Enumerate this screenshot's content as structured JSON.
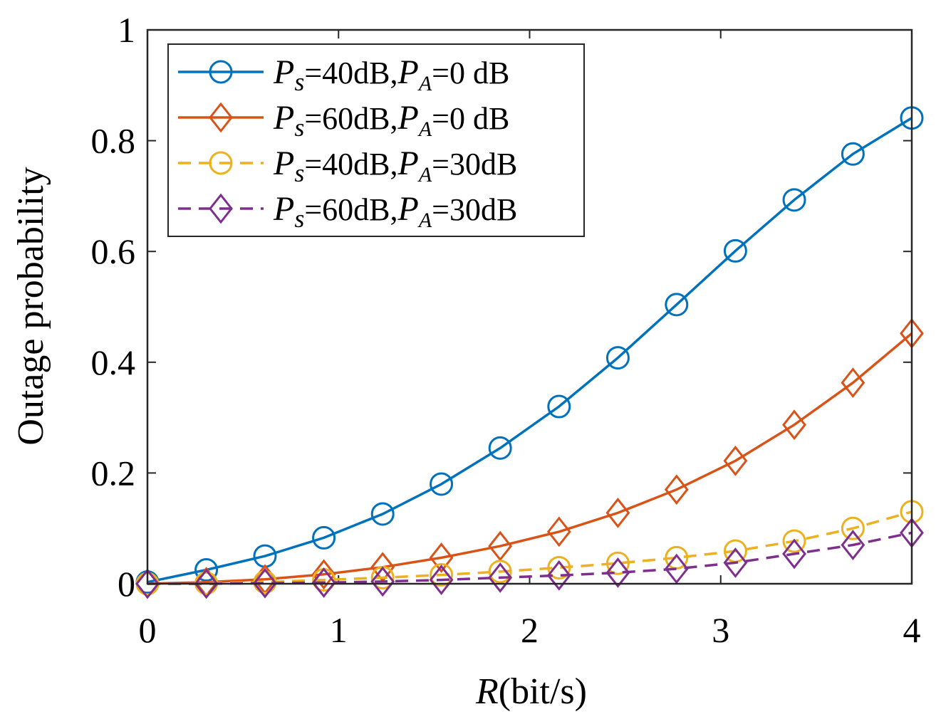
{
  "chart_data": {
    "type": "line",
    "title": "",
    "xlabel_italic": "R",
    "xlabel_rest": "(bit/s)",
    "ylabel": "Outage probability",
    "xlim": [
      0,
      4
    ],
    "ylim": [
      0,
      1
    ],
    "grid": false,
    "legend_position": "top-left",
    "xticks": [
      0,
      1,
      2,
      3,
      4
    ],
    "xtick_labels": [
      "0",
      "1",
      "2",
      "3",
      "4"
    ],
    "yticks": [
      0,
      0.2,
      0.4,
      0.6,
      0.8,
      1
    ],
    "ytick_labels": [
      "0",
      "0.2",
      "0.4",
      "0.6",
      "0.8",
      "1"
    ],
    "x": [
      0,
      0.308,
      0.615,
      0.923,
      1.231,
      1.538,
      1.846,
      2.154,
      2.462,
      2.769,
      3.077,
      3.385,
      3.692,
      4.0
    ],
    "series": [
      {
        "name": "Ps=40dB,PA=0 dB",
        "legend": {
          "p1": "P",
          "s1": "s",
          "mid": "=40dB,",
          "p2": "P",
          "s2": "A",
          "tail": "=0  dB"
        },
        "color": "#0072BD",
        "dash": "solid",
        "marker": "circle",
        "values": [
          0.003,
          0.025,
          0.05,
          0.083,
          0.126,
          0.18,
          0.245,
          0.32,
          0.408,
          0.504,
          0.601,
          0.693,
          0.776,
          0.841
        ]
      },
      {
        "name": "Ps=60dB,PA=0 dB",
        "legend": {
          "p1": "P",
          "s1": "s",
          "mid": "=60dB,",
          "p2": "P",
          "s2": "A",
          "tail": "=0  dB"
        },
        "color": "#D95319",
        "dash": "solid",
        "marker": "diamond",
        "values": [
          0.0,
          0.003,
          0.008,
          0.017,
          0.03,
          0.047,
          0.068,
          0.094,
          0.128,
          0.17,
          0.222,
          0.287,
          0.363,
          0.452
        ]
      },
      {
        "name": "Ps=40dB,PA=30dB",
        "legend": {
          "p1": "P",
          "s1": "s",
          "mid": "=40dB,",
          "p2": "P",
          "s2": "A",
          "tail": "=30dB"
        },
        "color": "#EDB120",
        "dash": "dashed",
        "marker": "circle",
        "values": [
          0.0,
          0.001,
          0.003,
          0.007,
          0.011,
          0.016,
          0.022,
          0.029,
          0.037,
          0.047,
          0.059,
          0.077,
          0.1,
          0.13
        ]
      },
      {
        "name": "Ps=60dB,PA=30dB",
        "legend": {
          "p1": "P",
          "s1": "s",
          "mid": "=60dB,",
          "p2": "P",
          "s2": "A",
          "tail": "=30dB"
        },
        "color": "#7E2F8E",
        "dash": "dashed",
        "marker": "diamond",
        "values": [
          0.0,
          0.0,
          0.001,
          0.002,
          0.004,
          0.007,
          0.011,
          0.015,
          0.02,
          0.027,
          0.038,
          0.054,
          0.07,
          0.092
        ]
      }
    ]
  }
}
